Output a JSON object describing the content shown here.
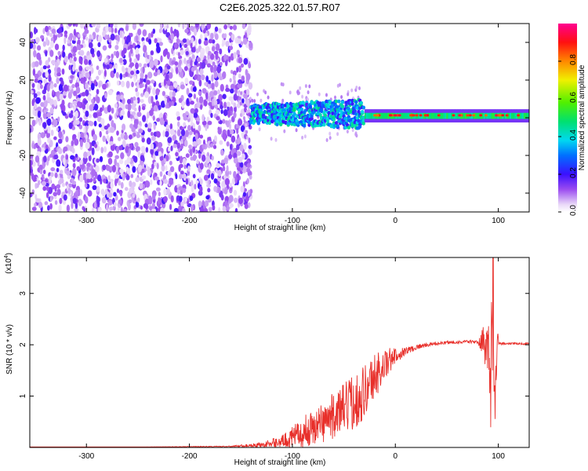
{
  "title": "C2E6.2025.322.01.57.R07",
  "chart_data": [
    {
      "type": "heatmap",
      "xlabel": "Height of straight line (km)",
      "ylabel": "Frequency (Hz)",
      "xlim": [
        -355,
        130
      ],
      "ylim": [
        -50,
        50
      ],
      "xticks": [
        -300,
        -200,
        -100,
        0,
        100
      ],
      "yticks": [
        -40,
        -20,
        0,
        20,
        40
      ],
      "colorbar": {
        "label": "Normalized spectral amplitude",
        "ticks": [
          "0.0",
          "0.2",
          "0.4",
          "0.6",
          "0.8"
        ],
        "range": [
          0,
          1
        ],
        "colormap": "rainbow (white-purple-blue-cyan-green-yellow-red-magenta)"
      },
      "features": [
        {
          "x_range": [
            -355,
            -140
          ],
          "freq_range": [
            -50,
            50
          ],
          "amplitude": 0.1,
          "note": "broadband noise"
        },
        {
          "x_range": [
            -140,
            -30
          ],
          "freq_center": 2,
          "freq_width": 10,
          "amplitude": 0.4
        },
        {
          "x_range": [
            -30,
            130
          ],
          "freq_center": 1,
          "freq_width": 4,
          "amplitude": 0.9
        }
      ]
    },
    {
      "type": "line",
      "xlabel": "Height of straight line (km)",
      "ylabel": "SNR (10 * v/v)",
      "yscale_label": "(x10",
      "yscale_exp": "4",
      "xlim": [
        -355,
        130
      ],
      "ylim": [
        0,
        3.7
      ],
      "xticks": [
        -300,
        -200,
        -100,
        0,
        100
      ],
      "yticks": [
        1,
        2,
        3
      ],
      "color": "#e8302b",
      "series": [
        {
          "name": "",
          "x": [
            -355,
            -250,
            -160,
            -130,
            -110,
            -100,
            -90,
            -80,
            -70,
            -60,
            -50,
            -40,
            -30,
            -25,
            -20,
            -15,
            -10,
            -5,
            0,
            10,
            20,
            30,
            40,
            50,
            60,
            70,
            80,
            88,
            92,
            95,
            97,
            99,
            101,
            105,
            110,
            120,
            130
          ],
          "y": [
            0.01,
            0.01,
            0.02,
            0.05,
            0.12,
            0.2,
            0.3,
            0.38,
            0.5,
            0.62,
            0.75,
            0.9,
            1.1,
            1.25,
            1.4,
            1.5,
            1.6,
            1.7,
            1.78,
            1.88,
            1.95,
            2.0,
            2.02,
            2.04,
            2.05,
            2.06,
            2.05,
            2.05,
            1.2,
            3.2,
            0.2,
            2.1,
            2.02,
            2.03,
            2.02,
            2.02,
            2.02
          ],
          "noise_amplitude": [
            0.0,
            0.0,
            0.01,
            0.05,
            0.12,
            0.2,
            0.3,
            0.35,
            0.4,
            0.45,
            0.5,
            0.55,
            0.55,
            0.5,
            0.45,
            0.4,
            0.3,
            0.25,
            0.15,
            0.08,
            0.05,
            0.04,
            0.03,
            0.03,
            0.03,
            0.03,
            0.03,
            0.5,
            1.2,
            1.5,
            1.2,
            0.3,
            0.03,
            0.02,
            0.02,
            0.02,
            0.02
          ]
        }
      ]
    }
  ]
}
